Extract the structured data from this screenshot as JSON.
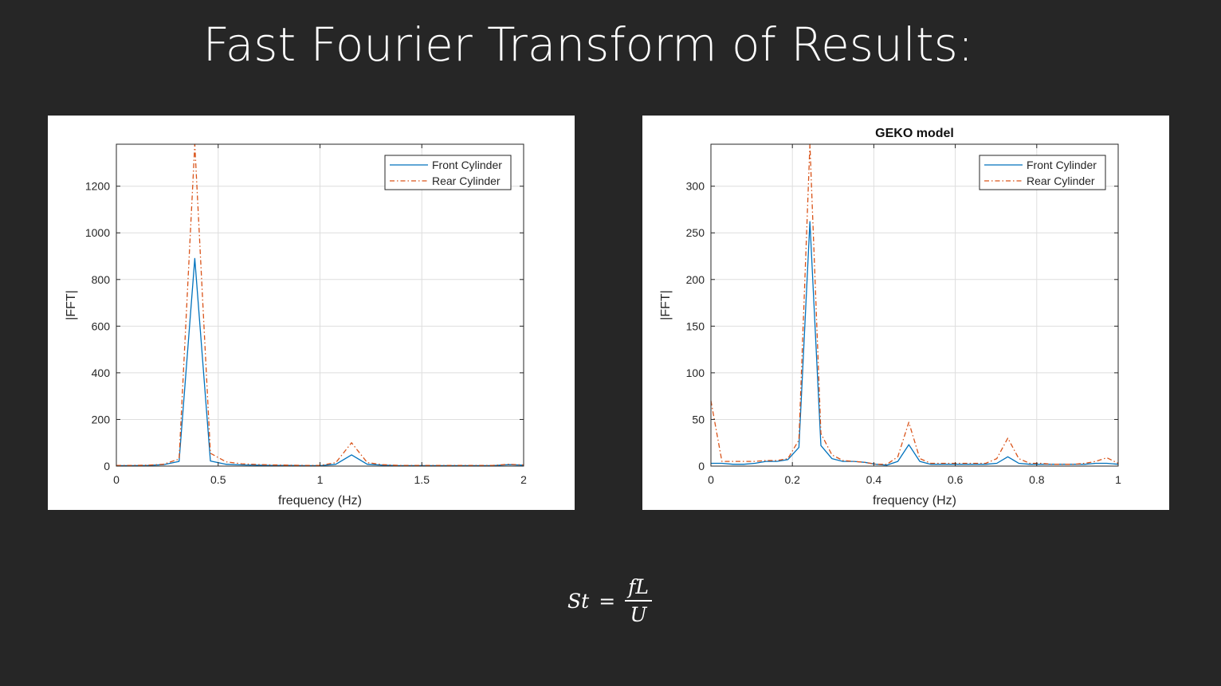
{
  "slide": {
    "title": "Fast Fourier Transform of Results:"
  },
  "formula": {
    "lhs": "St",
    "eq": "=",
    "numerator": "fL",
    "denominator": "U"
  },
  "colors": {
    "front": "#0072BD",
    "rear": "#D95319"
  },
  "chart_data": [
    {
      "type": "line",
      "title": "",
      "xlabel": "frequency (Hz)",
      "ylabel": "|FFT|",
      "xlim": [
        0,
        2
      ],
      "ylim": [
        0,
        1380
      ],
      "xticks": [
        0,
        0.5,
        1,
        1.5,
        2
      ],
      "xtick_labels": [
        "0",
        "0.5",
        "1",
        "1.5",
        "2"
      ],
      "yticks": [
        0,
        200,
        400,
        600,
        800,
        1000,
        1200
      ],
      "ytick_labels": [
        "0",
        "200",
        "400",
        "600",
        "800",
        "1000",
        "1200"
      ],
      "grid": true,
      "legend_position": "top-right",
      "series": [
        {
          "name": "Front Cylinder",
          "style": "solid",
          "x": [
            0,
            0.077,
            0.154,
            0.231,
            0.308,
            0.385,
            0.462,
            0.539,
            0.616,
            0.693,
            0.77,
            0.847,
            0.924,
            1.001,
            1.078,
            1.155,
            1.232,
            1.309,
            1.386,
            1.463,
            1.54,
            1.617,
            1.694,
            1.771,
            1.848,
            1.925,
            2.0
          ],
          "y": [
            2,
            2,
            3,
            6,
            20,
            890,
            22,
            8,
            5,
            4,
            3,
            3,
            2,
            2,
            8,
            48,
            8,
            4,
            2,
            2,
            2,
            2,
            2,
            2,
            2,
            6,
            4
          ]
        },
        {
          "name": "Rear Cylinder",
          "style": "dashdot",
          "x": [
            0,
            0.077,
            0.154,
            0.231,
            0.308,
            0.385,
            0.462,
            0.539,
            0.616,
            0.693,
            0.77,
            0.847,
            0.924,
            1.001,
            1.078,
            1.155,
            1.232,
            1.309,
            1.386,
            1.463,
            1.54,
            1.617,
            1.694,
            1.771,
            1.848,
            1.925,
            2.0
          ],
          "y": [
            3,
            3,
            4,
            8,
            30,
            1380,
            55,
            18,
            10,
            7,
            5,
            4,
            3,
            3,
            15,
            100,
            15,
            6,
            3,
            3,
            3,
            3,
            3,
            3,
            3,
            8,
            5
          ]
        }
      ]
    },
    {
      "type": "line",
      "title": "GEKO model",
      "xlabel": "frequency (Hz)",
      "ylabel": "|FFT|",
      "xlim": [
        0,
        1
      ],
      "ylim": [
        0,
        345
      ],
      "xticks": [
        0,
        0.2,
        0.4,
        0.6,
        0.8,
        1
      ],
      "xtick_labels": [
        "0",
        "0.2",
        "0.4",
        "0.6",
        "0.8",
        "1"
      ],
      "yticks": [
        0,
        50,
        100,
        150,
        200,
        250,
        300
      ],
      "ytick_labels": [
        "0",
        "50",
        "100",
        "150",
        "200",
        "250",
        "300"
      ],
      "grid": true,
      "legend_position": "top-right",
      "series": [
        {
          "name": "Front Cylinder",
          "style": "solid",
          "x": [
            0,
            0.027,
            0.054,
            0.081,
            0.108,
            0.135,
            0.162,
            0.189,
            0.216,
            0.243,
            0.27,
            0.297,
            0.324,
            0.351,
            0.378,
            0.405,
            0.432,
            0.459,
            0.486,
            0.513,
            0.54,
            0.567,
            0.594,
            0.621,
            0.648,
            0.675,
            0.702,
            0.729,
            0.756,
            0.783,
            0.81,
            0.837,
            0.864,
            0.891,
            0.918,
            0.945,
            0.972,
            1.0
          ],
          "y": [
            3,
            3,
            2,
            2,
            3,
            5,
            5,
            7,
            20,
            262,
            22,
            8,
            5,
            5,
            4,
            2,
            1,
            5,
            23,
            5,
            2,
            2,
            2,
            2,
            2,
            2,
            3,
            10,
            3,
            2,
            2,
            2,
            2,
            2,
            2,
            3,
            3,
            2
          ]
        },
        {
          "name": "Rear Cylinder",
          "style": "dashdot",
          "x": [
            0,
            0.027,
            0.054,
            0.081,
            0.108,
            0.135,
            0.162,
            0.189,
            0.216,
            0.243,
            0.27,
            0.297,
            0.324,
            0.351,
            0.378,
            0.405,
            0.432,
            0.459,
            0.486,
            0.513,
            0.54,
            0.567,
            0.594,
            0.621,
            0.648,
            0.675,
            0.702,
            0.729,
            0.756,
            0.783,
            0.81,
            0.837,
            0.864,
            0.891,
            0.918,
            0.945,
            0.972,
            1.0
          ],
          "y": [
            70,
            5,
            5,
            5,
            5,
            6,
            6,
            8,
            28,
            345,
            35,
            12,
            6,
            5,
            4,
            2,
            2,
            10,
            47,
            8,
            3,
            3,
            3,
            3,
            3,
            3,
            8,
            30,
            8,
            3,
            3,
            2,
            2,
            2,
            3,
            5,
            9,
            3
          ]
        }
      ]
    }
  ]
}
